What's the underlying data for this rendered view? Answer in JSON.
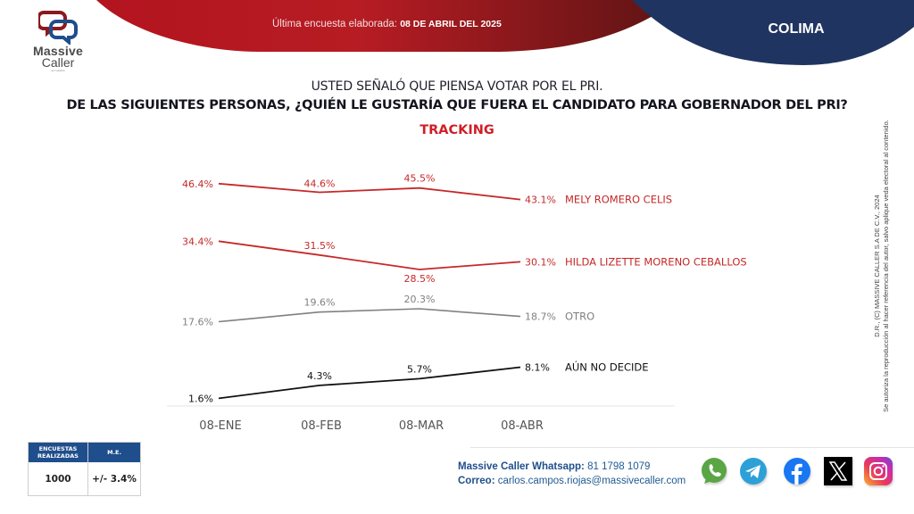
{
  "header": {
    "brand_line1": "Massive",
    "brand_line2": "Caller",
    "brand_tagline": "encuestas",
    "last_survey_label": "Última encuesta elaborada:",
    "last_survey_date": "08 DE ABRIL DEL 2025",
    "region": "COLIMA"
  },
  "question": {
    "line1": "USTED SEÑALÓ QUE PIENSA VOTAR POR EL PRI.",
    "line2": "DE LAS SIGUIENTES PERSONAS, ¿QUIÉN LE GUSTARÍA QUE FUERA EL CANDIDATO PARA GOBERNADOR DEL PRI?",
    "subtitle": "TRACKING"
  },
  "colors": {
    "brand_red": "#b71c23",
    "brand_dark_red": "#6e1515",
    "brand_navy": "#1f3461",
    "accent_red": "#d01f27",
    "series_red": "#c62828",
    "series_gray": "#808080",
    "series_black": "#111111",
    "table_header": "#1f4e8c"
  },
  "chart_data": {
    "type": "line",
    "title": "TRACKING",
    "x": [
      "08-ENE",
      "08-FEB",
      "08-MAR",
      "08-ABR"
    ],
    "xlabel": "",
    "ylabel": "",
    "ylim": [
      0,
      50
    ],
    "grid": false,
    "legend": "right-of-last-point",
    "value_suffix": "%",
    "series": [
      {
        "name": "MELY ROMERO CELIS",
        "color": "#c62828",
        "values": [
          46.4,
          44.6,
          45.5,
          43.1
        ],
        "label_pos": [
          "left",
          "below-center-above",
          "above",
          "right"
        ]
      },
      {
        "name": "HILDA LIZETTE MORENO CEBALLOS",
        "color": "#c62828",
        "values": [
          34.4,
          31.5,
          28.5,
          30.1
        ],
        "label_pos": [
          "left",
          "above",
          "below",
          "right"
        ]
      },
      {
        "name": "OTRO",
        "color": "#808080",
        "values": [
          17.6,
          19.6,
          20.3,
          18.7
        ],
        "label_pos": [
          "left",
          "above",
          "above",
          "right"
        ]
      },
      {
        "name": "AÚN NO DECIDE",
        "color": "#111111",
        "values": [
          1.6,
          4.3,
          5.7,
          8.1
        ],
        "label_pos": [
          "left",
          "above",
          "above",
          "right"
        ]
      }
    ]
  },
  "legal": {
    "line1": "D.R., (C) MASSIVE CALLER S.A DE C.V., 2024",
    "line2": "Se autoriza la reproducción al hacer referencia del autor, salvo aplique veda electoral al contenido."
  },
  "sample_table": {
    "headers": [
      "ENCUESTAS REALIZADAS",
      "M.E."
    ],
    "values": [
      "1000",
      "+/- 3.4%"
    ]
  },
  "contact": {
    "whatsapp_label": "Massive Caller Whatsapp:",
    "whatsapp_number": "81 1798 1079",
    "email_label": "Correo:",
    "email": "carlos.campos.riojas@massivecaller.com"
  },
  "social": [
    {
      "name": "whatsapp",
      "icon": "whatsapp-icon",
      "color": "#5aa544"
    },
    {
      "name": "telegram",
      "icon": "telegram-icon",
      "color": "#2ea0d8"
    },
    {
      "name": "facebook",
      "icon": "facebook-icon",
      "color": "#1877f2"
    },
    {
      "name": "x",
      "icon": "x-icon",
      "color": "#000000"
    },
    {
      "name": "instagram",
      "icon": "instagram-icon",
      "color": "#d6249f"
    }
  ]
}
